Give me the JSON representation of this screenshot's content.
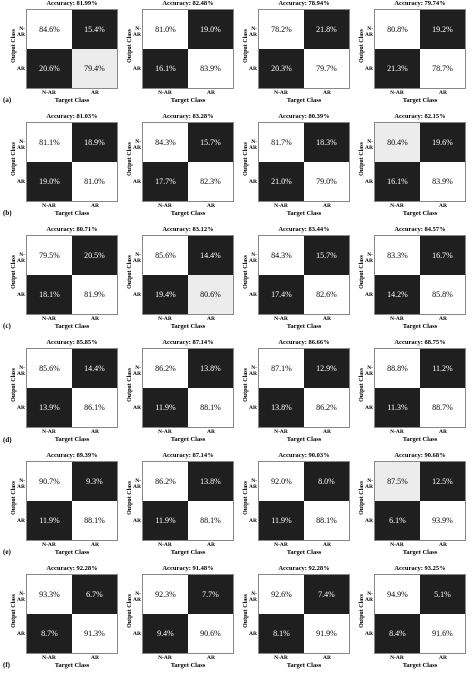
{
  "axis": {
    "ylabel": "Output Class",
    "xlabel": "Target Class",
    "class_labels": [
      "N-AR",
      "AR"
    ]
  },
  "colors": {
    "dark": "#1f1f1f",
    "light": "#ffffff",
    "lightgray": "#ececec",
    "dark_text": "#ffffff",
    "light_text": "#000000"
  },
  "chart_data": {
    "type": "heatmap",
    "matrices": [
      {
        "row": "(a)",
        "accuracy": "Accuracy: 81.99%",
        "cells": [
          [
            "84.6%",
            "15.4%"
          ],
          [
            "20.6%",
            "79.4%"
          ]
        ],
        "shade": [
          [
            "light",
            "dark"
          ],
          [
            "dark",
            "lightgray"
          ]
        ]
      },
      {
        "row": "(a)",
        "accuracy": "Accuracy: 82.48%",
        "cells": [
          [
            "81.0%",
            "19.0%"
          ],
          [
            "16.1%",
            "83.9%"
          ]
        ],
        "shade": [
          [
            "light",
            "dark"
          ],
          [
            "dark",
            "light"
          ]
        ]
      },
      {
        "row": "(a)",
        "accuracy": "Accuracy: 78.94%",
        "cells": [
          [
            "78.2%",
            "21.8%"
          ],
          [
            "20.3%",
            "79.7%"
          ]
        ],
        "shade": [
          [
            "light",
            "dark"
          ],
          [
            "dark",
            "light"
          ]
        ]
      },
      {
        "row": "(a)",
        "accuracy": "Accuracy: 79.74%",
        "cells": [
          [
            "80.8%",
            "19.2%"
          ],
          [
            "21.3%",
            "78.7%"
          ]
        ],
        "shade": [
          [
            "light",
            "dark"
          ],
          [
            "dark",
            "light"
          ]
        ]
      },
      {
        "row": "(b)",
        "accuracy": "Accuracy: 81.03%",
        "cells": [
          [
            "81.1%",
            "18.9%"
          ],
          [
            "19.0%",
            "81.0%"
          ]
        ],
        "shade": [
          [
            "light",
            "dark"
          ],
          [
            "dark",
            "light"
          ]
        ]
      },
      {
        "row": "(b)",
        "accuracy": "Accuracy: 83.28%",
        "cells": [
          [
            "84.3%",
            "15.7%"
          ],
          [
            "17.7%",
            "82.3%"
          ]
        ],
        "shade": [
          [
            "light",
            "dark"
          ],
          [
            "dark",
            "light"
          ]
        ]
      },
      {
        "row": "(b)",
        "accuracy": "Accuracy: 80.39%",
        "cells": [
          [
            "81.7%",
            "18.3%"
          ],
          [
            "21.0%",
            "79.0%"
          ]
        ],
        "shade": [
          [
            "light",
            "dark"
          ],
          [
            "dark",
            "light"
          ]
        ]
      },
      {
        "row": "(b)",
        "accuracy": "Accuracy: 82.15%",
        "cells": [
          [
            "80.4%",
            "19.6%"
          ],
          [
            "16.1%",
            "83.9%"
          ]
        ],
        "shade": [
          [
            "lightgray",
            "dark"
          ],
          [
            "dark",
            "light"
          ]
        ]
      },
      {
        "row": "(c)",
        "accuracy": "Accuracy: 80.71%",
        "cells": [
          [
            "79.5%",
            "20.5%"
          ],
          [
            "18.1%",
            "81.9%"
          ]
        ],
        "shade": [
          [
            "light",
            "dark"
          ],
          [
            "dark",
            "light"
          ]
        ]
      },
      {
        "row": "(c)",
        "accuracy": "Accuracy: 83.12%",
        "cells": [
          [
            "85.6%",
            "14.4%"
          ],
          [
            "19.4%",
            "80.6%"
          ]
        ],
        "shade": [
          [
            "light",
            "dark"
          ],
          [
            "dark",
            "lightgray"
          ]
        ]
      },
      {
        "row": "(c)",
        "accuracy": "Accuracy: 83.44%",
        "cells": [
          [
            "84.3%",
            "15.7%"
          ],
          [
            "17.4%",
            "82.6%"
          ]
        ],
        "shade": [
          [
            "light",
            "dark"
          ],
          [
            "dark",
            "light"
          ]
        ]
      },
      {
        "row": "(c)",
        "accuracy": "Accuracy: 84.57%",
        "cells": [
          [
            "83.3%",
            "16.7%"
          ],
          [
            "14.2%",
            "85.8%"
          ]
        ],
        "shade": [
          [
            "light",
            "dark"
          ],
          [
            "dark",
            "light"
          ]
        ]
      },
      {
        "row": "(d)",
        "accuracy": "Accuracy: 85.85%",
        "cells": [
          [
            "85.6%",
            "14.4%"
          ],
          [
            "13.9%",
            "86.1%"
          ]
        ],
        "shade": [
          [
            "light",
            "dark"
          ],
          [
            "dark",
            "light"
          ]
        ]
      },
      {
        "row": "(d)",
        "accuracy": "Accuracy: 87.14%",
        "cells": [
          [
            "86.2%",
            "13.8%"
          ],
          [
            "11.9%",
            "88.1%"
          ]
        ],
        "shade": [
          [
            "light",
            "dark"
          ],
          [
            "dark",
            "light"
          ]
        ]
      },
      {
        "row": "(d)",
        "accuracy": "Accuracy: 86.66%",
        "cells": [
          [
            "87.1%",
            "12.9%"
          ],
          [
            "13.8%",
            "86.2%"
          ]
        ],
        "shade": [
          [
            "light",
            "dark"
          ],
          [
            "dark",
            "light"
          ]
        ]
      },
      {
        "row": "(d)",
        "accuracy": "Accuracy: 88.75%",
        "cells": [
          [
            "88.8%",
            "11.2%"
          ],
          [
            "11.3%",
            "88.7%"
          ]
        ],
        "shade": [
          [
            "light",
            "dark"
          ],
          [
            "dark",
            "light"
          ]
        ]
      },
      {
        "row": "(e)",
        "accuracy": "Accuracy: 89.39%",
        "cells": [
          [
            "90.7%",
            "9.3%"
          ],
          [
            "11.9%",
            "88.1%"
          ]
        ],
        "shade": [
          [
            "light",
            "dark"
          ],
          [
            "dark",
            "light"
          ]
        ]
      },
      {
        "row": "(e)",
        "accuracy": "Accuracy: 87.14%",
        "cells": [
          [
            "86.2%",
            "13.8%"
          ],
          [
            "11.9%",
            "88.1%"
          ]
        ],
        "shade": [
          [
            "light",
            "dark"
          ],
          [
            "dark",
            "light"
          ]
        ]
      },
      {
        "row": "(e)",
        "accuracy": "Accuracy: 90.03%",
        "cells": [
          [
            "92.0%",
            "8.0%"
          ],
          [
            "11.9%",
            "88.1%"
          ]
        ],
        "shade": [
          [
            "light",
            "dark"
          ],
          [
            "dark",
            "light"
          ]
        ]
      },
      {
        "row": "(e)",
        "accuracy": "Accuracy: 90.68%",
        "cells": [
          [
            "87.5%",
            "12.5%"
          ],
          [
            "6.1%",
            "93.9%"
          ]
        ],
        "shade": [
          [
            "lightgray",
            "dark"
          ],
          [
            "dark",
            "light"
          ]
        ]
      },
      {
        "row": "(f)",
        "accuracy": "Accuracy: 92.28%",
        "cells": [
          [
            "93.3%",
            "6.7%"
          ],
          [
            "8.7%",
            "91.3%"
          ]
        ],
        "shade": [
          [
            "light",
            "dark"
          ],
          [
            "dark",
            "light"
          ]
        ]
      },
      {
        "row": "(f)",
        "accuracy": "Accuracy: 91.48%",
        "cells": [
          [
            "92.3%",
            "7.7%"
          ],
          [
            "9.4%",
            "90.6%"
          ]
        ],
        "shade": [
          [
            "light",
            "dark"
          ],
          [
            "dark",
            "light"
          ]
        ]
      },
      {
        "row": "(f)",
        "accuracy": "Accuracy: 92.28%",
        "cells": [
          [
            "92.6%",
            "7.4%"
          ],
          [
            "8.1%",
            "91.9%"
          ]
        ],
        "shade": [
          [
            "light",
            "dark"
          ],
          [
            "dark",
            "light"
          ]
        ]
      },
      {
        "row": "(f)",
        "accuracy": "Accuracy: 93.25%",
        "cells": [
          [
            "94.9%",
            "5.1%"
          ],
          [
            "8.4%",
            "91.6%"
          ]
        ],
        "shade": [
          [
            "light",
            "dark"
          ],
          [
            "dark",
            "light"
          ]
        ]
      }
    ]
  }
}
